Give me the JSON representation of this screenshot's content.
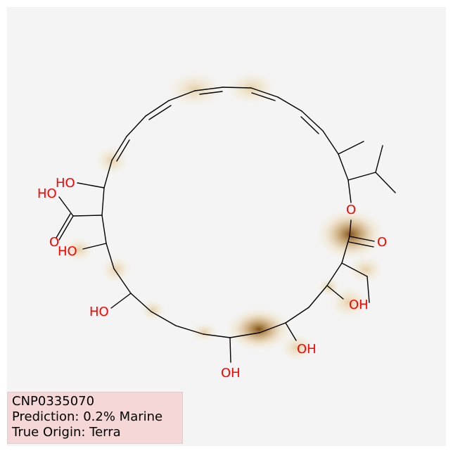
{
  "colors": {
    "background": "#f4f4f4",
    "bond": "#000000",
    "heteroatom": "#ff0000",
    "attribution_heat": "#8b5a14",
    "info_box": "#f5d0d0"
  },
  "molecule": {
    "atom_labels": [
      "HO",
      "HO",
      "O",
      "HO",
      "HO",
      "OH",
      "OH",
      "OH",
      "O",
      "O"
    ]
  },
  "info": {
    "compound_id": "CNP0335070",
    "prediction": "Prediction: 0.2% Marine",
    "true_origin": "True Origin: Terra"
  }
}
